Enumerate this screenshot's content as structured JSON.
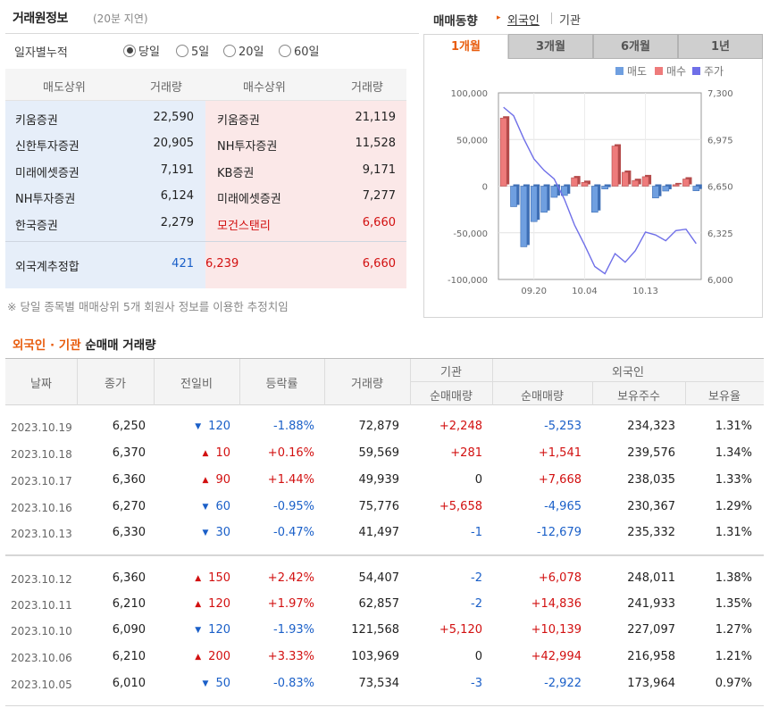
{
  "trade_info": {
    "title": "거래원정보",
    "delay": "(20분 지연)",
    "period_label": "일자별누적",
    "periods": [
      {
        "label": "당일",
        "selected": true
      },
      {
        "label": "5일",
        "selected": false
      },
      {
        "label": "20일",
        "selected": false
      },
      {
        "label": "60일",
        "selected": false
      }
    ],
    "headers": {
      "sell_top": "매도상위",
      "sell_volume": "거래량",
      "buy_top": "매수상위",
      "buy_volume": "거래량"
    },
    "rows": [
      {
        "sell_name": "키움증권",
        "sell_vol": "22,590",
        "buy_name": "키움증권",
        "buy_vol": "21,119",
        "buy_highlight": false
      },
      {
        "sell_name": "신한투자증권",
        "sell_vol": "20,905",
        "buy_name": "NH투자증권",
        "buy_vol": "11,528",
        "buy_highlight": false
      },
      {
        "sell_name": "미래에셋증권",
        "sell_vol": "7,191",
        "buy_name": "KB증권",
        "buy_vol": "9,171",
        "buy_highlight": false
      },
      {
        "sell_name": "NH투자증권",
        "sell_vol": "6,124",
        "buy_name": "미래에셋증권",
        "buy_vol": "7,277",
        "buy_highlight": false
      },
      {
        "sell_name": "한국증권",
        "sell_vol": "2,279",
        "buy_name": "모건스탠리",
        "buy_vol": "6,660",
        "buy_highlight": true
      }
    ],
    "foreign_estimate": {
      "label": "외국계추정합",
      "sell": "421",
      "net": "6,239",
      "buy": "6,660"
    },
    "footnote": "※ 당일 종목별 매매상위 5개 회원사 정보를 이용한 추정치임"
  },
  "trend": {
    "title": "매매동향",
    "tab_foreign": "외국인",
    "tab_institution": "기관",
    "period_tabs": [
      {
        "label": "1개월",
        "active": true
      },
      {
        "label": "3개월",
        "active": false
      },
      {
        "label": "6개월",
        "active": false
      },
      {
        "label": "1년",
        "active": false
      }
    ],
    "colors": {
      "sell": "#6f9fe0",
      "buy": "#ee7b7b",
      "price": "#6f6fe8"
    }
  },
  "chart_data": {
    "type": "bar",
    "legend": [
      "매도",
      "매수",
      "주가"
    ],
    "legend_position": "top-right",
    "y_left_ticks": [
      "100,000",
      "50,000",
      "0",
      "-50,000",
      "-100,000"
    ],
    "y_right_ticks": [
      "7,300",
      "6,975",
      "6,650",
      "6,325",
      "6,000"
    ],
    "ylim_left": [
      -100000,
      100000
    ],
    "ylim_right": [
      6000,
      7300
    ],
    "x_ticks": [
      {
        "label": "09.20",
        "index": 3
      },
      {
        "label": "10.04",
        "index": 8
      },
      {
        "label": "10.13",
        "index": 14
      }
    ],
    "net_values": [
      73000,
      -22000,
      -65000,
      -38000,
      -28000,
      -12000,
      -10000,
      9000,
      4000,
      -28000,
      -3000,
      42994,
      14836,
      6078,
      10139,
      -12679,
      -5253,
      1541,
      7668,
      -4965
    ],
    "price": [
      7200,
      7140,
      6980,
      6840,
      6760,
      6700,
      6560,
      6380,
      6240,
      6090,
      6040,
      6180,
      6120,
      6200,
      6330,
      6310,
      6270,
      6340,
      6350,
      6250
    ],
    "grid": true
  },
  "net_trade": {
    "title_colored": "외국인 · 기관",
    "title_rest": "순매매 거래량",
    "headers": {
      "date": "날짜",
      "close": "종가",
      "change": "전일비",
      "rate": "등락률",
      "volume": "거래량",
      "institution": "기관",
      "inst_net": "순매매량",
      "foreign": "외국인",
      "for_net": "순매매량",
      "holdings": "보유주수",
      "ratio": "보유율"
    },
    "rows": [
      {
        "date": "2023.10.19",
        "close": "6,250",
        "dir": "down",
        "change": "120",
        "rate": "-1.88%",
        "volume": "72,879",
        "inst": "+2,248",
        "foreign": "-5,253",
        "holdings": "234,323",
        "ratio": "1.31%"
      },
      {
        "date": "2023.10.18",
        "close": "6,370",
        "dir": "up",
        "change": "10",
        "rate": "+0.16%",
        "volume": "59,569",
        "inst": "+281",
        "foreign": "+1,541",
        "holdings": "239,576",
        "ratio": "1.34%"
      },
      {
        "date": "2023.10.17",
        "close": "6,360",
        "dir": "up",
        "change": "90",
        "rate": "+1.44%",
        "volume": "49,939",
        "inst": "0",
        "foreign": "+7,668",
        "holdings": "238,035",
        "ratio": "1.33%"
      },
      {
        "date": "2023.10.16",
        "close": "6,270",
        "dir": "down",
        "change": "60",
        "rate": "-0.95%",
        "volume": "75,776",
        "inst": "+5,658",
        "foreign": "-4,965",
        "holdings": "230,367",
        "ratio": "1.29%"
      },
      {
        "date": "2023.10.13",
        "close": "6,330",
        "dir": "down",
        "change": "30",
        "rate": "-0.47%",
        "volume": "41,497",
        "inst": "-1",
        "foreign": "-12,679",
        "holdings": "235,332",
        "ratio": "1.31%"
      },
      {
        "date": "2023.10.12",
        "close": "6,360",
        "dir": "up",
        "change": "150",
        "rate": "+2.42%",
        "volume": "54,407",
        "inst": "-2",
        "foreign": "+6,078",
        "holdings": "248,011",
        "ratio": "1.38%"
      },
      {
        "date": "2023.10.11",
        "close": "6,210",
        "dir": "up",
        "change": "120",
        "rate": "+1.97%",
        "volume": "62,857",
        "inst": "-2",
        "foreign": "+14,836",
        "holdings": "241,933",
        "ratio": "1.35%"
      },
      {
        "date": "2023.10.10",
        "close": "6,090",
        "dir": "down",
        "change": "120",
        "rate": "-1.93%",
        "volume": "121,568",
        "inst": "+5,120",
        "foreign": "+10,139",
        "holdings": "227,097",
        "ratio": "1.27%"
      },
      {
        "date": "2023.10.06",
        "close": "6,210",
        "dir": "up",
        "change": "200",
        "rate": "+3.33%",
        "volume": "103,969",
        "inst": "0",
        "foreign": "+42,994",
        "holdings": "216,958",
        "ratio": "1.21%"
      },
      {
        "date": "2023.10.05",
        "close": "6,010",
        "dir": "down",
        "change": "50",
        "rate": "-0.83%",
        "volume": "73,534",
        "inst": "-3",
        "foreign": "-2,922",
        "holdings": "173,964",
        "ratio": "0.97%"
      }
    ]
  }
}
